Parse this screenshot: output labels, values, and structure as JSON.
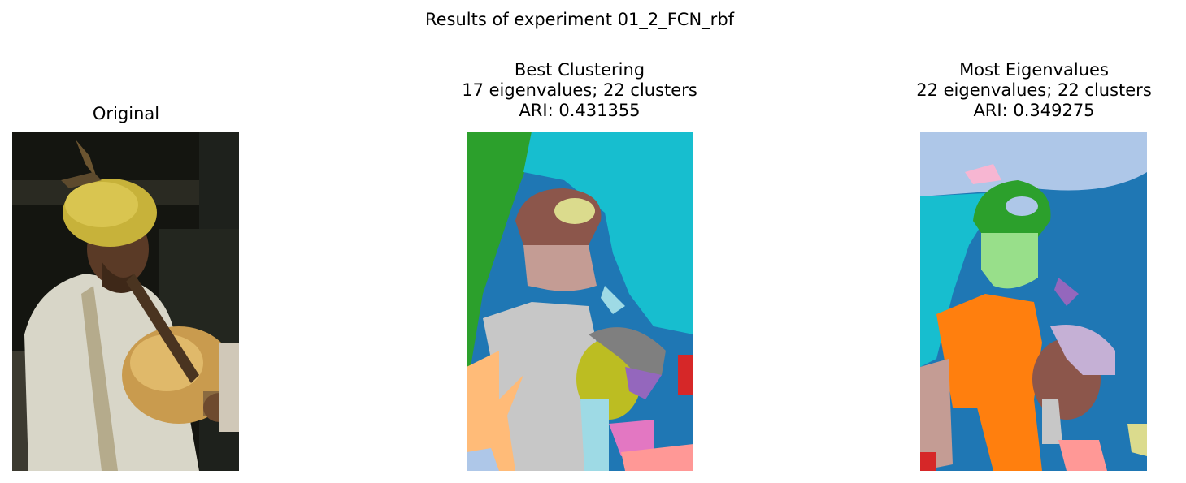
{
  "figure": {
    "suptitle": "Results of experiment 01_2_FCN_rbf",
    "panels": [
      {
        "title_lines": [
          "Original"
        ]
      },
      {
        "title_lines": [
          "Best Clustering",
          "17 eigenvalues; 22 clusters",
          "ARI: 0.431355"
        ]
      },
      {
        "title_lines": [
          "Most Eigenvalues",
          "22 eigenvalues; 22 clusters",
          "ARI: 0.349275"
        ]
      }
    ]
  },
  "colors": {
    "tab_blue": "#1f77b4",
    "tab_orange": "#ff7f0e",
    "tab_green": "#2ca02c",
    "tab_red": "#d62728",
    "tab_purple": "#9467bd",
    "tab_brown": "#8c564b",
    "tab_pink": "#e377c2",
    "tab_gray": "#7f7f7f",
    "tab_olive": "#bcbd22",
    "tab_cyan": "#17becf",
    "light_blue": "#aec7e8",
    "light_orange": "#ffbb78",
    "light_green": "#98df8a",
    "light_red": "#ff9896",
    "light_purple": "#c5b0d5",
    "light_brown": "#c49c94",
    "light_pink": "#f7b6d2",
    "light_gray": "#c7c7c7",
    "light_olive": "#dbdb8d",
    "light_cyan": "#9edae5"
  }
}
